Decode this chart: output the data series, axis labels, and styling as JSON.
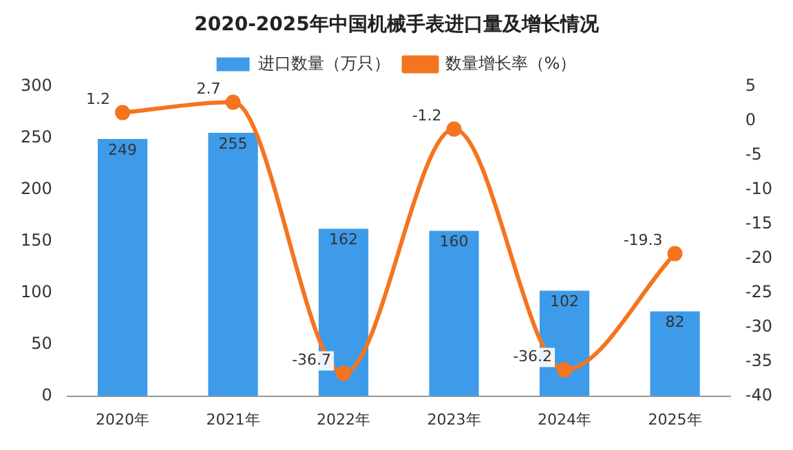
{
  "chart_data": {
    "type": "bar",
    "title": "2020-2025年中国机械手表进口量及增长情况",
    "categories": [
      "2020年",
      "2021年",
      "2022年",
      "2023年",
      "2024年",
      "2025年"
    ],
    "series": [
      {
        "name": "进口数量（万只）",
        "color": "#3e9be9",
        "values": [
          249,
          255,
          162,
          160,
          102,
          82
        ]
      },
      {
        "name": "数量增长率（%）",
        "type": "line",
        "axis": "y2",
        "color": "#f5741f",
        "values": [
          1.2,
          2.7,
          -36.7,
          -1.2,
          -36.2,
          -19.3
        ]
      }
    ],
    "ylim": [
      0,
      300
    ],
    "yticks": [
      0,
      50,
      100,
      150,
      200,
      250,
      300
    ],
    "y2lim": [
      -40,
      5
    ],
    "y2ticks": [
      -40,
      -35,
      -30,
      -25,
      -20,
      -15,
      -10,
      -5,
      0,
      5
    ],
    "data_labels": true,
    "legend": "top",
    "grid": false,
    "marker": "circle",
    "line_style": "solid"
  }
}
